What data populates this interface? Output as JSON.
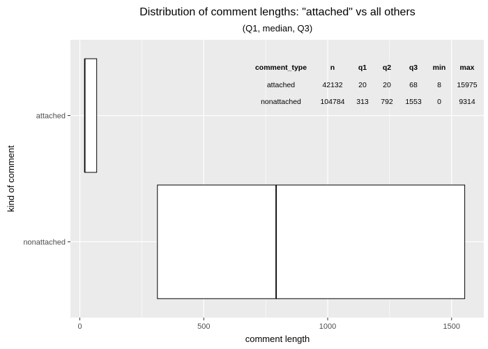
{
  "chart_data": {
    "type": "boxplot",
    "orientation": "horizontal",
    "title": "Distribution of comment lengths: \"attached\" vs all others",
    "subtitle": "(Q1, median, Q3)",
    "xlabel": "comment length",
    "ylabel": "kind of comment",
    "xlim": [
      -38,
      1630
    ],
    "x_ticks": [
      0,
      500,
      1000,
      1500
    ],
    "x_tick_labels": [
      "0",
      "500",
      "1000",
      "1500"
    ],
    "grid": true,
    "categories": [
      "attached",
      "nonattached"
    ],
    "boxes": [
      {
        "category": "attached",
        "q1": 20,
        "median": 20,
        "q3": 68
      },
      {
        "category": "nonattached",
        "q1": 313,
        "median": 792,
        "q3": 1553
      }
    ],
    "table": {
      "columns": [
        "comment_type",
        "n",
        "q1",
        "q2",
        "q3",
        "min",
        "max"
      ],
      "rows": [
        [
          "attached",
          "42132",
          "20",
          "20",
          "68",
          "8",
          "15975"
        ],
        [
          "nonattached",
          "104784",
          "313",
          "792",
          "1553",
          "0",
          "9314"
        ]
      ]
    },
    "colors": {
      "panel_bg": "#ebebeb",
      "grid": "#ffffff",
      "box_fill": "#ffffff",
      "box_stroke": "#000000"
    }
  }
}
